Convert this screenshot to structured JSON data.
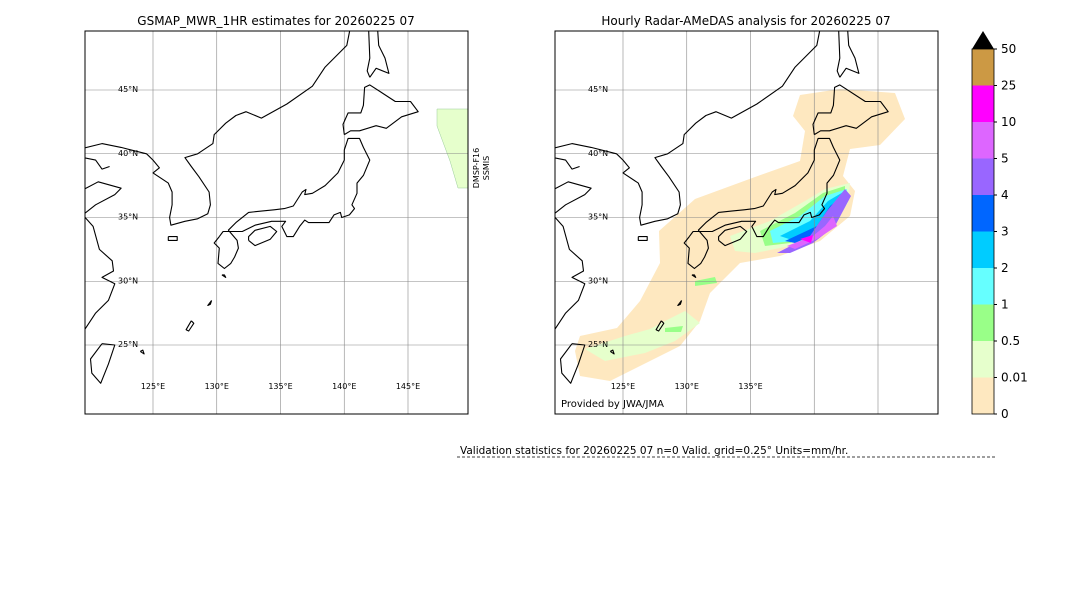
{
  "left_panel": {
    "title": "GSMAP_MWR_1HR estimates for 20260225 07",
    "lat_labels": [
      "45°N",
      "40°N",
      "35°N",
      "30°N",
      "25°N"
    ],
    "lon_labels": [
      "125°E",
      "130°E",
      "135°E",
      "140°E",
      "145°E"
    ],
    "satellite_label": [
      "DMSP-F16",
      "SSMIS"
    ]
  },
  "right_panel": {
    "title": "Hourly Radar-AMeDAS analysis for 20260225 07",
    "lat_labels": [
      "45°N",
      "40°N",
      "35°N",
      "30°N",
      "25°N"
    ],
    "lon_labels": [
      "125°E",
      "130°E",
      "135°E"
    ],
    "credit": "Provided by JWA/JMA"
  },
  "colorbar": {
    "levels": [
      0,
      0.01,
      0.5,
      1,
      2,
      3,
      4,
      5,
      10,
      25,
      50
    ],
    "colors": [
      "#fee8c0",
      "#e6ffcc",
      "#99ff88",
      "#66ffff",
      "#00ccff",
      "#0066ff",
      "#9966ff",
      "#dd66ff",
      "#ff00ff",
      "#cc9944"
    ]
  },
  "footer": {
    "validation_text": "Validation statistics for 20260225 07  n=0 Valid. grid=0.25° Units=mm/hr."
  }
}
